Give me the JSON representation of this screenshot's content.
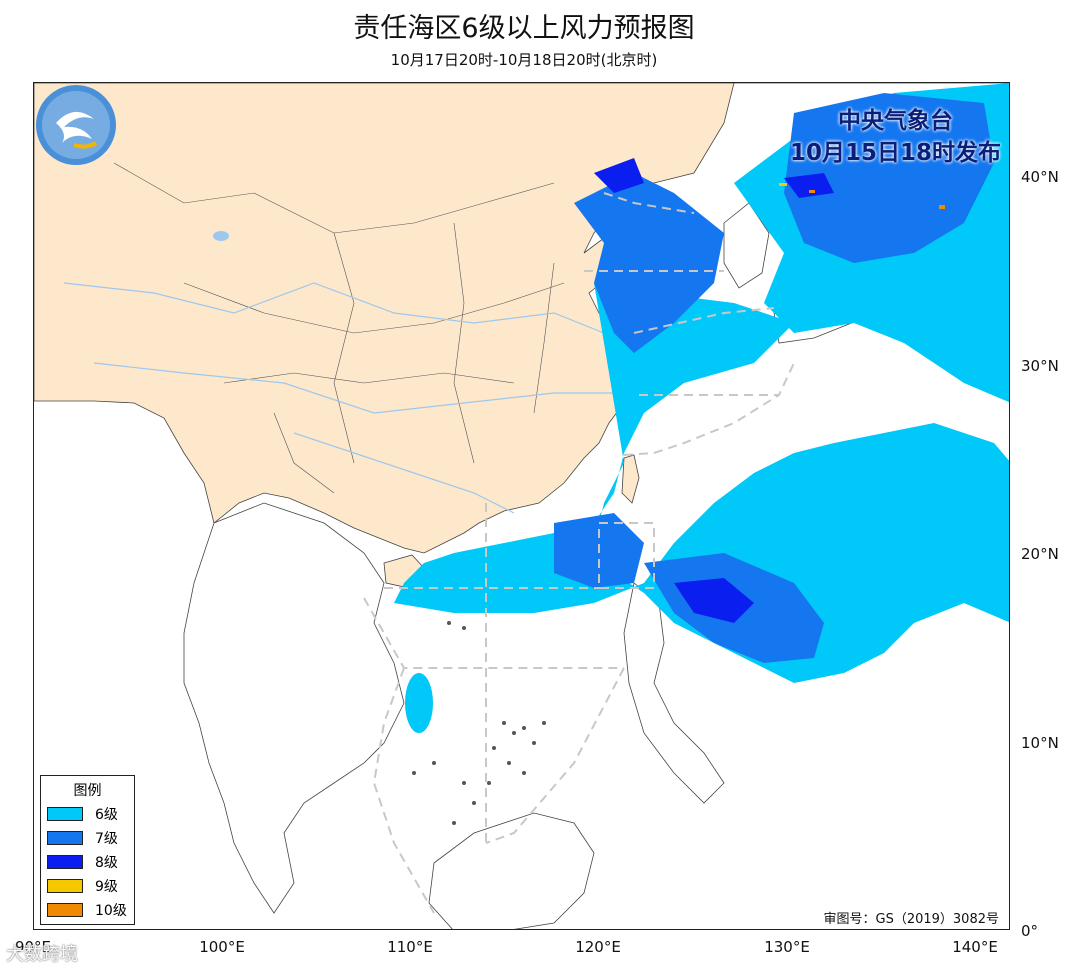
{
  "header": {
    "title": "责任海区6级以上风力预报图",
    "subtitle": "10月17日20时-10月18日20时(北京时)"
  },
  "issuer": {
    "line1": "中央气象台",
    "line2": "10月15日18时发布"
  },
  "approval_number": "审图号：GS（2019）3082号",
  "legend": {
    "title": "图例",
    "items": [
      {
        "label": "6级",
        "color": "#00c8f8"
      },
      {
        "label": "7级",
        "color": "#1477f0"
      },
      {
        "label": "8级",
        "color": "#0a1ef0"
      },
      {
        "label": "9级",
        "color": "#f5c800"
      },
      {
        "label": "10级",
        "color": "#f08a00"
      }
    ]
  },
  "axes": {
    "lat_labels": [
      "40°N",
      "30°N",
      "20°N",
      "10°N",
      "0°"
    ],
    "lon_labels": [
      "90°E",
      "100°E",
      "110°E",
      "120°E",
      "130°E",
      "140°E"
    ]
  },
  "colors": {
    "land_china": "#fde8cc",
    "sea": "#ffffff",
    "boundary": "#333333",
    "river": "#9cc8ee",
    "zone_line": "#c8c8c8"
  },
  "watermark": "大数跨境"
}
